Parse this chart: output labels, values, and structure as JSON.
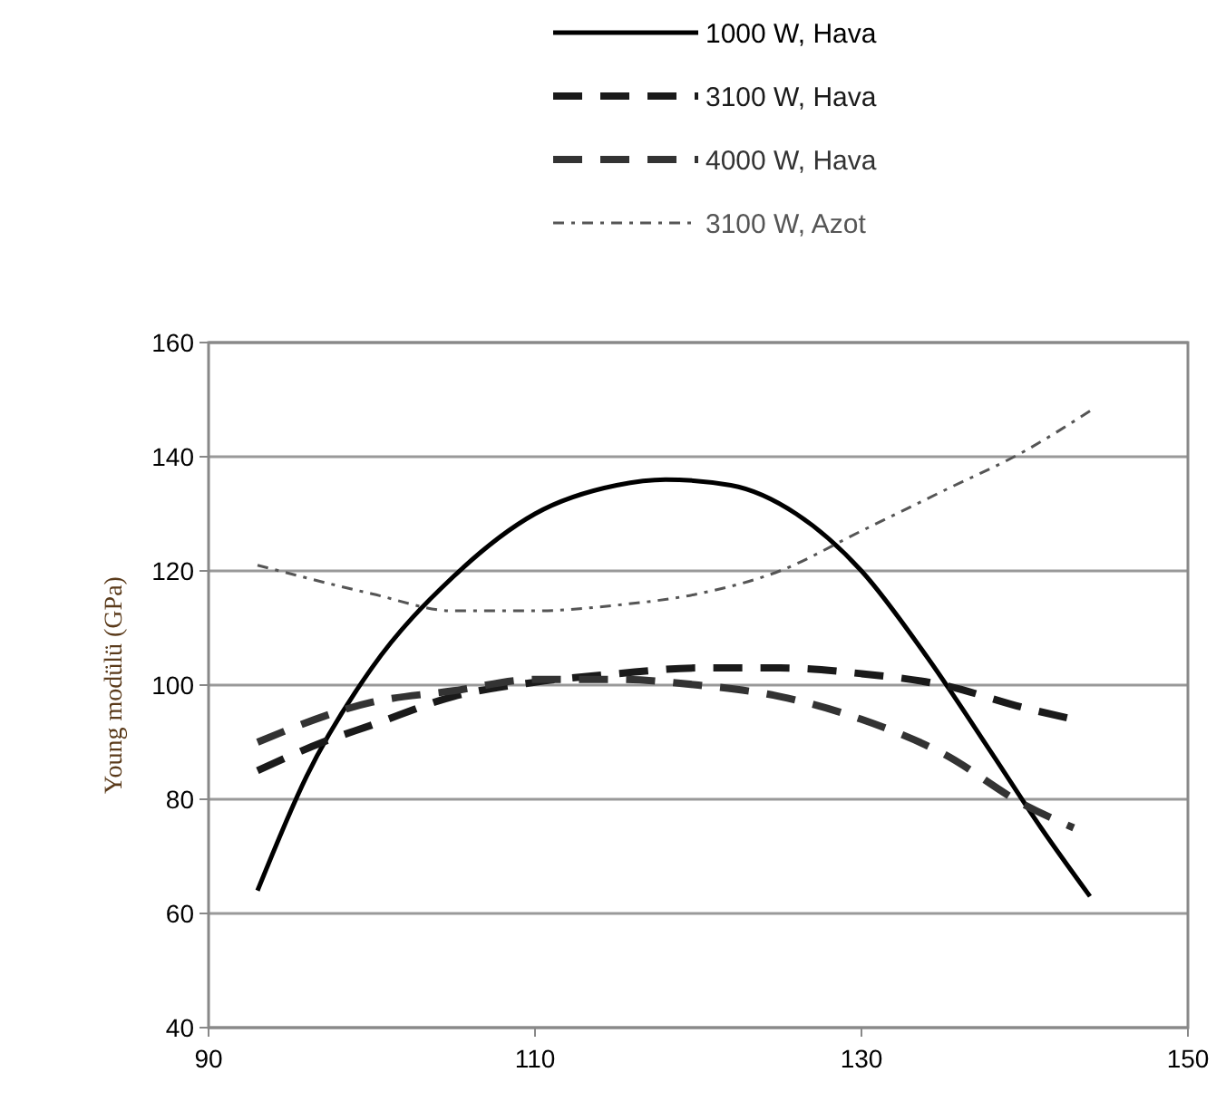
{
  "chart_data": {
    "type": "line",
    "ylabel": "Young modülü (GPa)",
    "xlim": [
      90,
      150
    ],
    "xticks": [
      90,
      110,
      130,
      150
    ],
    "ylim": [
      40,
      160
    ],
    "yticks": [
      40,
      60,
      80,
      100,
      120,
      140,
      160
    ],
    "grid": "y",
    "legend": "top",
    "marker": "none",
    "series": [
      {
        "name": "1000 W, Hava",
        "color": "#000000",
        "line_style": "solid",
        "x": [
          93,
          96,
          100,
          105,
          110,
          115,
          118,
          122,
          126,
          130,
          134,
          138,
          141,
          144
        ],
        "values": [
          64,
          84,
          103,
          119,
          130,
          135,
          136,
          135,
          130,
          120,
          105,
          88,
          75,
          63
        ]
      },
      {
        "name": "3100 W, Hava",
        "color": "#1a1a1a",
        "line_style": "dashed",
        "x": [
          93,
          97,
          100,
          105,
          110,
          115,
          120,
          125,
          130,
          135,
          140,
          143
        ],
        "values": [
          85,
          90,
          93,
          98,
          100.5,
          102,
          103,
          103,
          102,
          100,
          96,
          94
        ]
      },
      {
        "name": "4000 W, Hava",
        "color": "#333333",
        "line_style": "dashed",
        "x": [
          93,
          100,
          105,
          110,
          115,
          120,
          125,
          130,
          135,
          140,
          143
        ],
        "values": [
          90,
          97,
          99,
          101,
          101,
          100,
          98,
          94,
          88,
          79,
          75
        ]
      },
      {
        "name": "3100 W, Azot",
        "color": "#555555",
        "line_style": "dotted",
        "x": [
          93,
          100,
          105,
          110,
          115,
          120,
          125,
          130,
          135,
          140,
          144
        ],
        "values": [
          121,
          116,
          113,
          113,
          114,
          116,
          120,
          127,
          134,
          141,
          148
        ]
      }
    ]
  }
}
